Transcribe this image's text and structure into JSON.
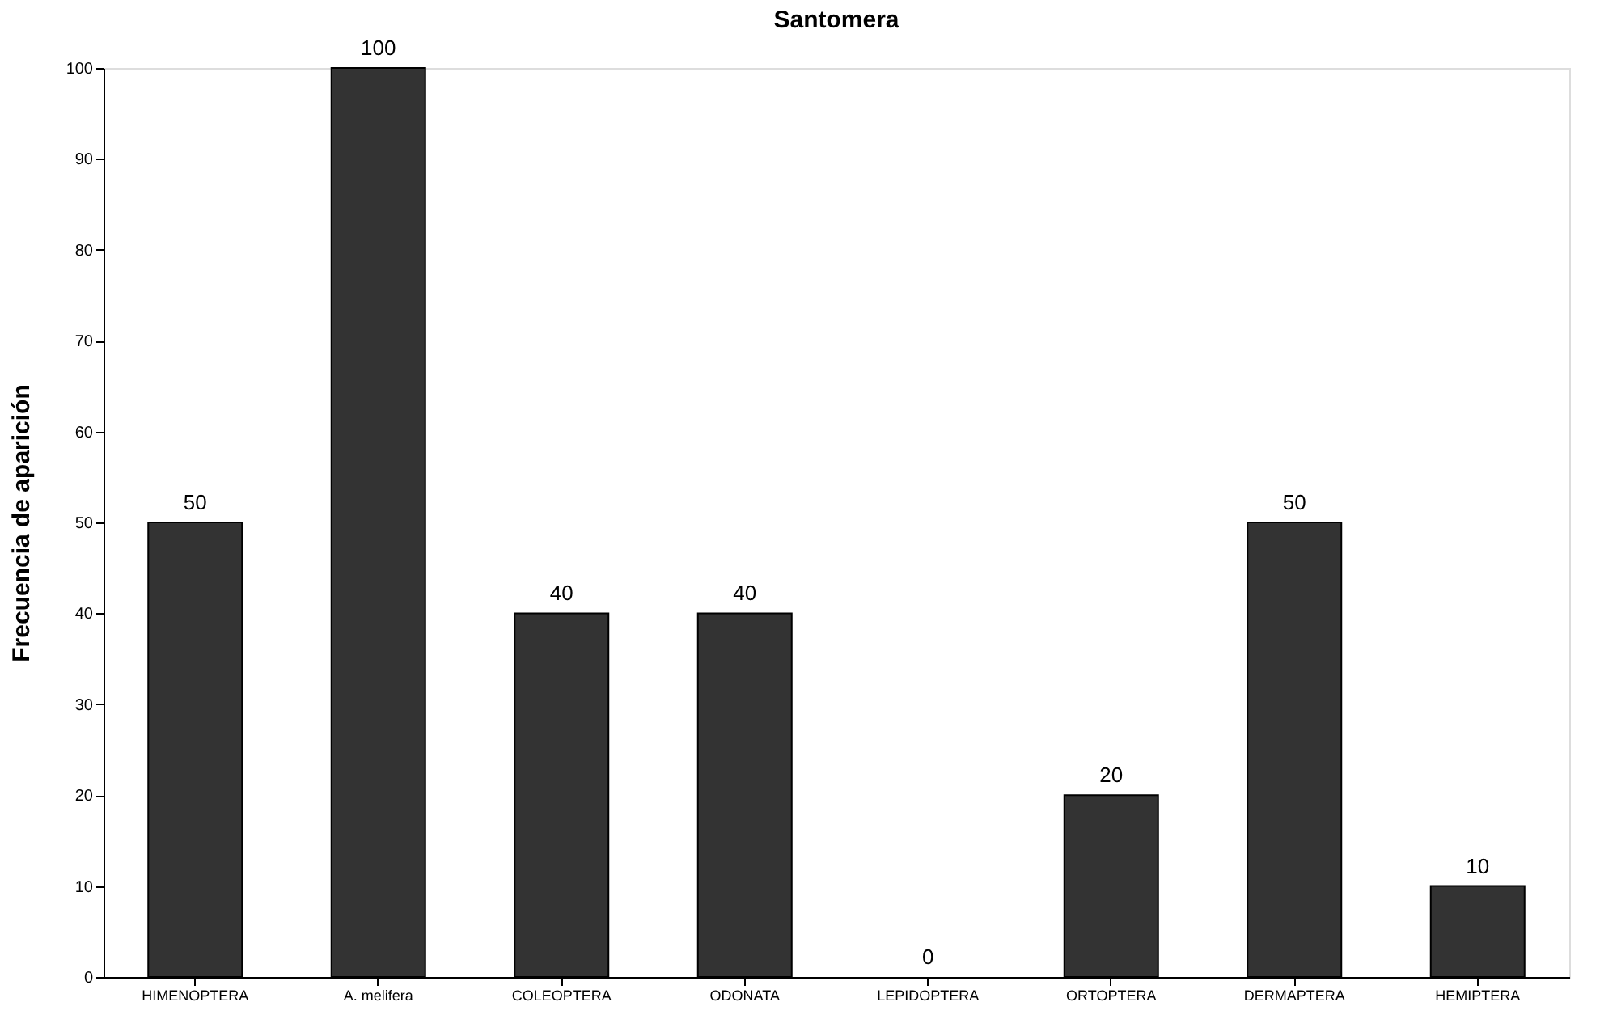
{
  "chart_data": {
    "type": "bar",
    "title": "Santomera",
    "ylabel": "Frecuencia de aparición",
    "categories": [
      "HIMENOPTERA",
      "A. melifera",
      "COLEOPTERA",
      "ODONATA",
      "LEPIDOPTERA",
      "ORTOPTERA",
      "DERMAPTERA",
      "HEMIPTERA"
    ],
    "values": [
      50,
      100,
      40,
      40,
      0,
      20,
      50,
      10
    ],
    "color": "#333333",
    "ylim": [
      0,
      100
    ],
    "yticks": [
      0,
      10,
      20,
      30,
      40,
      50,
      60,
      70,
      80,
      90,
      100
    ],
    "grid": false,
    "data_labels": true
  }
}
